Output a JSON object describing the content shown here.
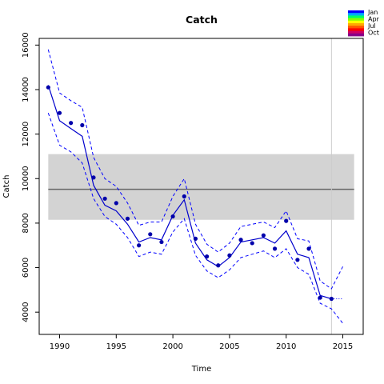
{
  "chart_data": {
    "type": "line",
    "title": "Catch",
    "xlabel": "Time",
    "ylabel": "Catch",
    "xlim": [
      1988.2,
      2016.8
    ],
    "ylim": [
      3000,
      16300
    ],
    "xticks": [
      1990,
      1995,
      2000,
      2005,
      2010,
      2015
    ],
    "yticks": [
      4000,
      6000,
      8000,
      10000,
      12000,
      14000,
      16000
    ],
    "grid": false,
    "reference_band": {
      "x": [
        1989,
        2016
      ],
      "ymin": 8150,
      "ymax": 11100,
      "mean": 9520,
      "fill": "#d3d3d3",
      "line": "#666666"
    },
    "vertical_line_x": 2014,
    "observed_points": {
      "x": [
        1989,
        1990,
        1991,
        1992,
        1993,
        1994,
        1995,
        1996,
        1997,
        1998,
        1999,
        2000,
        2001,
        2002,
        2003,
        2004,
        2005,
        2006,
        2007,
        2008,
        2009,
        2010,
        2011,
        2012,
        2013,
        2014
      ],
      "y": [
        14100,
        12950,
        12500,
        12400,
        10050,
        9100,
        8900,
        8200,
        7000,
        7500,
        7150,
        8300,
        9200,
        7300,
        6500,
        6100,
        6550,
        7250,
        7100,
        7450,
        6850,
        8100,
        6350,
        6850,
        4650,
        4600
      ]
    },
    "series": [
      {
        "name": "",
        "style": "solid",
        "color": "#0000cc",
        "x": [
          1989,
          1990,
          1991,
          1992,
          1993,
          1994,
          1995,
          1996,
          1997,
          1998,
          1999,
          2000,
          2001,
          2002,
          2003,
          2004,
          2005,
          2006,
          2007,
          2008,
          2009,
          2010,
          2011,
          2012,
          2013,
          2014
        ],
        "y": [
          14200,
          12600,
          12250,
          11900,
          9700,
          8800,
          8550,
          7950,
          7150,
          7350,
          7250,
          8350,
          9050,
          7100,
          6350,
          6050,
          6450,
          7150,
          7250,
          7350,
          7100,
          7650,
          6600,
          6450,
          4750,
          4600
        ]
      },
      {
        "name": "",
        "style": "dashed",
        "color": "#0000ff",
        "x": [
          1989,
          1990,
          1991,
          1992,
          1993,
          1994,
          1995,
          1996,
          1997,
          1998,
          1999,
          2000,
          2001,
          2002,
          2003,
          2004,
          2005,
          2006,
          2007,
          2008,
          2009,
          2010,
          2011,
          2012,
          2013,
          2014,
          2015
        ],
        "y": [
          15800,
          13850,
          13500,
          13200,
          10950,
          10000,
          9650,
          8900,
          7900,
          8050,
          8050,
          9200,
          10000,
          7950,
          7050,
          6700,
          7100,
          7850,
          7950,
          8050,
          7800,
          8550,
          7300,
          7200,
          5400,
          5050,
          6050
        ]
      },
      {
        "name": "",
        "style": "dashed",
        "color": "#0000ff",
        "x": [
          1989,
          1990,
          1991,
          1992,
          1993,
          1994,
          1995,
          1996,
          1997,
          1998,
          1999,
          2000,
          2001,
          2002,
          2003,
          2004,
          2005,
          2006,
          2007,
          2008,
          2009,
          2010,
          2011,
          2012,
          2013,
          2014,
          2015
        ],
        "y": [
          12950,
          11500,
          11200,
          10700,
          9100,
          8300,
          7950,
          7350,
          6500,
          6700,
          6600,
          7600,
          8200,
          6550,
          5850,
          5550,
          5900,
          6450,
          6600,
          6750,
          6450,
          6850,
          6000,
          5700,
          4400,
          4150,
          3500
        ]
      },
      {
        "name": "",
        "style": "dotted",
        "color": "#0000ff",
        "x": [
          2014,
          2015
        ],
        "y": [
          4600,
          4600
        ]
      }
    ],
    "legend": {
      "position": "top-right",
      "entries": [
        "Jan",
        "Apr",
        "Jul",
        "Oct"
      ],
      "gradient_colors": [
        "#0000ff",
        "#00aaff",
        "#00ff66",
        "#88ff00",
        "#ffff00",
        "#ffaa00",
        "#ff5500",
        "#ff0000",
        "#cc0066",
        "#880088"
      ]
    }
  }
}
